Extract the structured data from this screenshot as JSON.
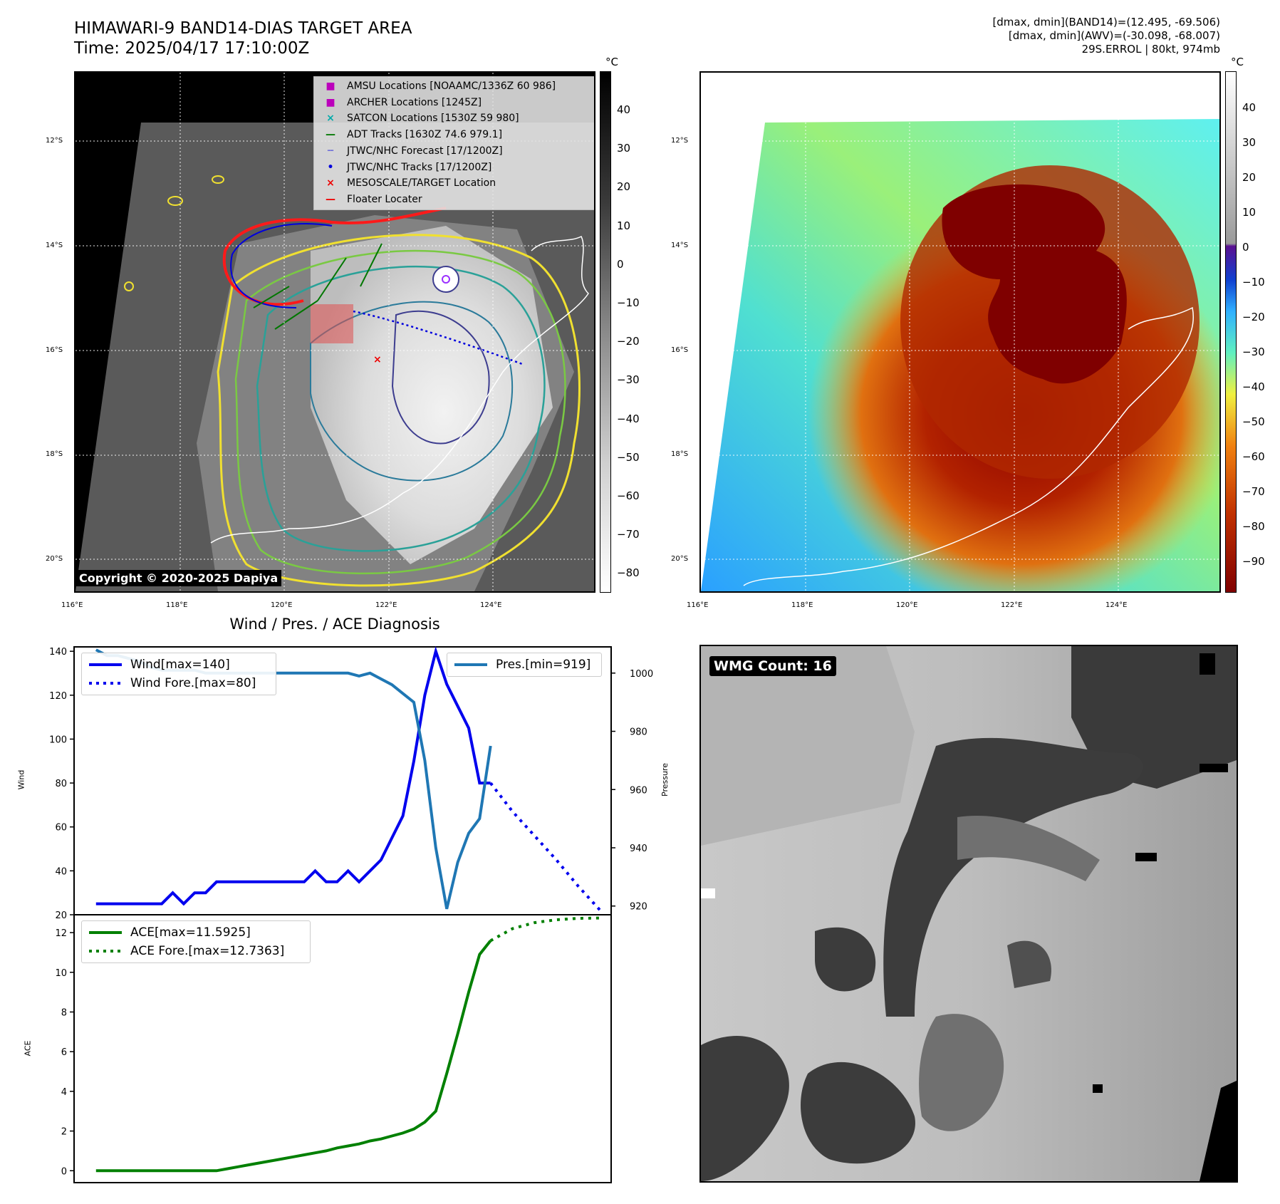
{
  "header": {
    "title_line1": "HIMAWARI-9 BAND14-DIAS TARGET AREA",
    "title_line2": "Time: 2025/04/17 17:10:00Z",
    "info_line1": "[dmax, dmin](BAND14)=(12.495, -69.506)",
    "info_line2": "[dmax, dmin](AWV)=(-30.098, -68.007)",
    "info_line3": "29S.ERROL | 80kt, 974mb"
  },
  "map_axes": {
    "lat_labels": [
      "12°S",
      "14°S",
      "16°S",
      "18°S",
      "20°S"
    ],
    "lon_labels": [
      "116°E",
      "118°E",
      "120°E",
      "122°E",
      "124°E"
    ]
  },
  "left_map": {
    "copyright": "Copyright © 2020-2025 Dapiya",
    "legend": [
      {
        "symbol": "■",
        "color": "#bb00bb",
        "label": "AMSU Locations [NOAAMC/1336Z 60 986]"
      },
      {
        "symbol": "■",
        "color": "#bb00bb",
        "label": "ARCHER Locations [1245Z]"
      },
      {
        "symbol": "×",
        "color": "#00aaaa",
        "label": "SATCON Locations [1530Z 59 980]"
      },
      {
        "symbol": "—",
        "color": "#007700",
        "label": "ADT Tracks [1630Z 74.6 979.1]"
      },
      {
        "symbol": "┈",
        "color": "#0000dd",
        "label": "JTWC/NHC Forecast [17/1200Z]"
      },
      {
        "symbol": "•",
        "color": "#0000dd",
        "label": "JTWC/NHC Tracks [17/1200Z]"
      },
      {
        "symbol": "×",
        "color": "#ee0000",
        "label": "MESOSCALE/TARGET Location"
      },
      {
        "symbol": "—",
        "color": "#ee0000",
        "label": "Floater Locater"
      }
    ],
    "colorbar": {
      "unit": "°C",
      "ticks": [
        "40",
        "30",
        "20",
        "10",
        "0",
        "−10",
        "−20",
        "−30",
        "−40",
        "−50",
        "−60",
        "−70",
        "−80"
      ]
    }
  },
  "right_map": {
    "colorbar": {
      "unit": "°C",
      "ticks": [
        "40",
        "30",
        "20",
        "10",
        "0",
        "−10",
        "−20",
        "−30",
        "−40",
        "−50",
        "−60",
        "−70",
        "−80",
        "−90"
      ]
    }
  },
  "wmg_panel": {
    "badge": "WMG Count: 16"
  },
  "chart_data": [
    {
      "type": "line",
      "title": "Wind / Pres. / ACE Diagnosis",
      "ylabel": "Wind",
      "y2label": "Pressure",
      "ylim": [
        20,
        142
      ],
      "y2lim": [
        917,
        1009
      ],
      "yticks": [
        "20",
        "40",
        "60",
        "80",
        "100",
        "120",
        "140"
      ],
      "y2ticks": [
        "920",
        "940",
        "960",
        "980",
        "1000"
      ],
      "series": [
        {
          "name": "Wind[max=140]",
          "color": "#0000ee",
          "style": "solid",
          "x": [
            0,
            1,
            2,
            3,
            4,
            5,
            6,
            7,
            8,
            9,
            10,
            11,
            12,
            13,
            14,
            15,
            16,
            17,
            18,
            19,
            20,
            21,
            22,
            23,
            24,
            25,
            26,
            27,
            28,
            29,
            30,
            31,
            32,
            33,
            34,
            35,
            36
          ],
          "values": [
            25,
            25,
            25,
            25,
            25,
            25,
            25,
            30,
            25,
            30,
            30,
            35,
            35,
            35,
            35,
            35,
            35,
            35,
            35,
            35,
            40,
            35,
            35,
            40,
            35,
            40,
            45,
            55,
            65,
            90,
            120,
            140,
            125,
            115,
            105,
            80,
            80
          ]
        },
        {
          "name": "Wind Fore.[max=80]",
          "color": "#0000ee",
          "style": "dotted",
          "x": [
            36,
            38,
            40,
            42,
            44,
            46
          ],
          "values": [
            80,
            67,
            56,
            45,
            33,
            22
          ]
        },
        {
          "name": "Pres.[min=919]",
          "color": "#1f77b4",
          "style": "solid",
          "axis": "right",
          "x": [
            0,
            1,
            2,
            3,
            4,
            5,
            6,
            7,
            8,
            9,
            10,
            11,
            12,
            13,
            14,
            15,
            16,
            17,
            18,
            19,
            20,
            21,
            22,
            23,
            24,
            25,
            26,
            27,
            28,
            29,
            30,
            31,
            32,
            33,
            34,
            35,
            36
          ],
          "values": [
            1008,
            1006,
            1006,
            1005,
            1004,
            1002,
            1001,
            1001,
            1001,
            1001,
            1000,
            1000,
            1000,
            1000,
            1000,
            1000,
            1000,
            1000,
            1000,
            1000,
            1000,
            1000,
            1000,
            1000,
            999,
            1000,
            998,
            996,
            993,
            990,
            970,
            940,
            919,
            935,
            945,
            950,
            975
          ]
        }
      ]
    },
    {
      "type": "line",
      "ylabel": "ACE",
      "ylim": [
        -0.6,
        12.9
      ],
      "yticks": [
        "0",
        "2",
        "4",
        "6",
        "8",
        "10",
        "12"
      ],
      "series": [
        {
          "name": "ACE[max=11.5925]",
          "color": "#008000",
          "style": "solid",
          "x": [
            0,
            2,
            4,
            6,
            8,
            10,
            11,
            12,
            13,
            14,
            15,
            16,
            17,
            18,
            19,
            20,
            21,
            22,
            23,
            24,
            25,
            26,
            27,
            28,
            29,
            30,
            31,
            32,
            33,
            34,
            35,
            36
          ],
          "values": [
            0,
            0,
            0,
            0,
            0,
            0,
            0,
            0.1,
            0.2,
            0.3,
            0.4,
            0.5,
            0.6,
            0.7,
            0.8,
            0.9,
            1.0,
            1.15,
            1.25,
            1.35,
            1.5,
            1.6,
            1.75,
            1.9,
            2.1,
            2.45,
            3.0,
            4.9,
            6.9,
            9.0,
            10.9,
            11.5925
          ]
        },
        {
          "name": "ACE Fore.[max=12.7363]",
          "color": "#008000",
          "style": "dotted",
          "x": [
            36,
            38,
            40,
            42,
            44,
            46
          ],
          "values": [
            11.5925,
            12.2,
            12.5,
            12.65,
            12.72,
            12.7363
          ]
        }
      ]
    }
  ]
}
